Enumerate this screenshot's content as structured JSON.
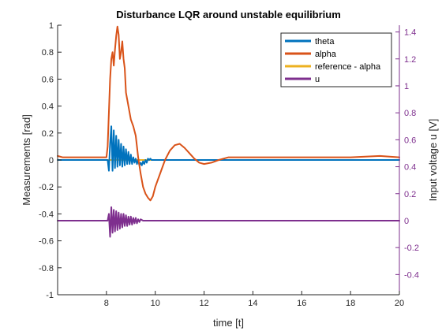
{
  "chart_data": {
    "type": "line",
    "title": "Disturbance LQR around unstable equilibrium",
    "xlabel": "time [t]",
    "ylabel": "Measurements [rad]",
    "ylabel_right": "Input voltage u [V]",
    "xlim": [
      6,
      20
    ],
    "ylim": [
      -1,
      1
    ],
    "ylim_right": [
      -0.55,
      1.45
    ],
    "xticks": [
      8,
      10,
      12,
      14,
      16,
      18,
      20
    ],
    "yticks": [
      -1,
      -0.8,
      -0.6,
      -0.4,
      -0.2,
      0,
      0.2,
      0.4,
      0.6,
      0.8,
      1
    ],
    "yticks_right": [
      -0.4,
      -0.2,
      0,
      0.2,
      0.4,
      0.6,
      0.8,
      1,
      1.2,
      1.4
    ],
    "legend_position": "top-right",
    "grid": false,
    "colors": {
      "theta": "#0072BD",
      "alpha": "#D95319",
      "reference": "#EDB120",
      "u": "#7E2F8E",
      "right_axis": "#7E2F8E"
    },
    "series": [
      {
        "name": "theta",
        "axis": "left",
        "x": [
          6.0,
          8.05,
          8.1,
          8.15,
          8.2,
          8.25,
          8.3,
          8.35,
          8.4,
          8.45,
          8.5,
          8.55,
          8.6,
          8.65,
          8.7,
          8.75,
          8.8,
          8.85,
          8.9,
          8.95,
          9.0,
          9.05,
          9.1,
          9.15,
          9.2,
          9.25,
          9.3,
          9.35,
          9.4,
          9.45,
          9.5,
          9.55,
          9.6,
          9.65,
          9.7,
          9.75,
          9.8,
          9.85,
          9.9,
          10.0,
          20.0
        ],
        "y": [
          0.0,
          0.0,
          -0.08,
          0.12,
          0.25,
          -0.08,
          0.22,
          -0.06,
          0.18,
          -0.05,
          0.15,
          -0.04,
          0.12,
          -0.05,
          0.1,
          -0.04,
          0.08,
          -0.03,
          0.06,
          -0.03,
          0.04,
          -0.03,
          0.02,
          -0.02,
          0.01,
          -0.03,
          0.0,
          -0.04,
          -0.02,
          -0.04,
          -0.01,
          -0.03,
          0.0,
          -0.02,
          0.01,
          0.0,
          0.01,
          0.0,
          0.0,
          0.0,
          0.0
        ]
      },
      {
        "name": "alpha",
        "axis": "left",
        "x": [
          6.0,
          6.2,
          7.0,
          7.8,
          8.0,
          8.05,
          8.1,
          8.15,
          8.2,
          8.25,
          8.3,
          8.35,
          8.4,
          8.45,
          8.5,
          8.55,
          8.6,
          8.65,
          8.7,
          8.75,
          8.8,
          8.85,
          8.9,
          9.0,
          9.1,
          9.2,
          9.25,
          9.3,
          9.4,
          9.5,
          9.6,
          9.7,
          9.8,
          9.9,
          10.0,
          10.2,
          10.4,
          10.6,
          10.8,
          11.0,
          11.2,
          11.4,
          11.6,
          11.8,
          12.0,
          12.3,
          12.6,
          13.0,
          14.0,
          16.0,
          18.0,
          19.2,
          20.0
        ],
        "y": [
          0.03,
          0.02,
          0.02,
          0.02,
          0.02,
          0.1,
          0.35,
          0.6,
          0.75,
          0.8,
          0.7,
          0.82,
          0.92,
          0.99,
          0.93,
          0.75,
          0.8,
          0.88,
          0.75,
          0.68,
          0.5,
          0.45,
          0.4,
          0.3,
          0.25,
          0.18,
          0.1,
          0.02,
          -0.1,
          -0.2,
          -0.25,
          -0.28,
          -0.3,
          -0.27,
          -0.2,
          -0.1,
          0.0,
          0.07,
          0.11,
          0.12,
          0.09,
          0.05,
          0.01,
          -0.02,
          -0.03,
          -0.02,
          0.0,
          0.02,
          0.02,
          0.02,
          0.02,
          0.03,
          0.02
        ]
      },
      {
        "name": "reference - alpha",
        "axis": "left",
        "x": [
          6.0,
          20.0
        ],
        "y": [
          0.0,
          0.0
        ]
      },
      {
        "name": "u",
        "axis": "right",
        "x": [
          6.0,
          8.05,
          8.1,
          8.15,
          8.2,
          8.25,
          8.3,
          8.35,
          8.4,
          8.45,
          8.5,
          8.55,
          8.6,
          8.65,
          8.7,
          8.75,
          8.8,
          8.85,
          8.9,
          8.95,
          9.0,
          9.05,
          9.1,
          9.15,
          9.2,
          9.25,
          9.3,
          9.35,
          9.4,
          9.5,
          9.6,
          20.0
        ],
        "y": [
          0.0,
          0.0,
          0.05,
          -0.12,
          0.1,
          -0.09,
          0.08,
          -0.08,
          0.07,
          -0.07,
          0.06,
          -0.06,
          0.05,
          -0.05,
          0.05,
          -0.04,
          0.04,
          -0.04,
          0.03,
          -0.03,
          0.03,
          -0.03,
          0.02,
          -0.02,
          0.02,
          -0.02,
          0.01,
          -0.01,
          0.01,
          0.0,
          0.0,
          0.0
        ]
      }
    ]
  }
}
